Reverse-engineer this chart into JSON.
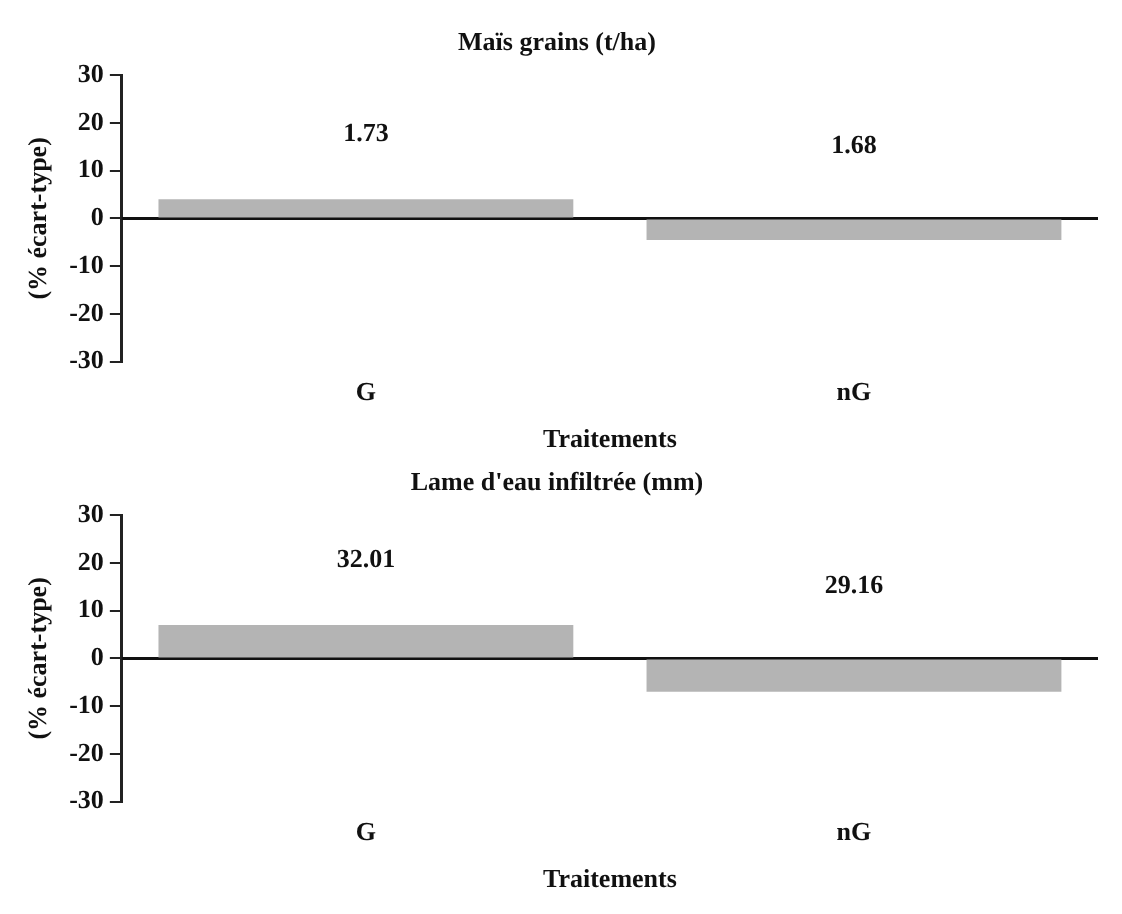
{
  "chart_data": [
    {
      "type": "bar",
      "title": "Maïs grains (t/ha)",
      "xlabel": "Traitements",
      "ylabel": "(% écart-type)",
      "categories": [
        "G",
        "nG"
      ],
      "values": [
        4,
        -4.5
      ],
      "color": "#b4b4b4",
      "ylim": [
        -30,
        30
      ],
      "yticks": [
        -30,
        -20,
        -10,
        0,
        10,
        20,
        30
      ],
      "grid": false,
      "legend": false,
      "ref_lines": [
        {
          "axis": "y",
          "value": 0,
          "color": "#111111"
        }
      ],
      "annotations": [
        "1.73",
        "1.68"
      ]
    },
    {
      "type": "bar",
      "title": "Lame d'eau infiltrée (mm)",
      "xlabel": "Traitements",
      "ylabel": "(% écart-type)",
      "categories": [
        "G",
        "nG"
      ],
      "values": [
        7,
        -7
      ],
      "color": "#b4b4b4",
      "ylim": [
        -30,
        30
      ],
      "yticks": [
        -30,
        -20,
        -10,
        0,
        10,
        20,
        30
      ],
      "grid": false,
      "legend": false,
      "ref_lines": [
        {
          "axis": "y",
          "value": 0,
          "color": "#111111"
        }
      ],
      "annotations": [
        "32.01",
        "29.16"
      ]
    }
  ]
}
